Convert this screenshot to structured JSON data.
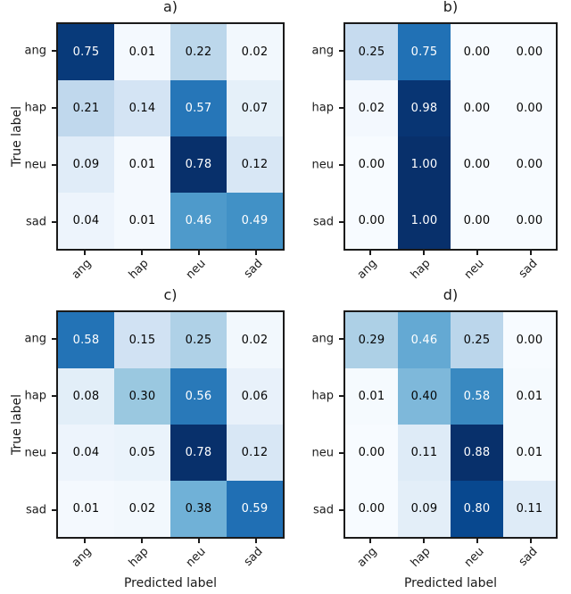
{
  "figure": {
    "background": "#ffffff",
    "axis_color": "#1a1a1a",
    "colormap": "Blues",
    "colormap_low": "#f7fbff",
    "colormap_high": "#08306b",
    "value_text_light": "#ffffff",
    "value_text_dark": "#050505",
    "row_axis_label": "True label",
    "col_axis_label": "Predicted label",
    "classes": [
      "ang",
      "hap",
      "neu",
      "sad"
    ]
  },
  "chart_data": [
    {
      "id": "a",
      "type": "heatmap",
      "title": "a)",
      "x_categories": [
        "ang",
        "hap",
        "neu",
        "sad"
      ],
      "y_categories": [
        "ang",
        "hap",
        "neu",
        "sad"
      ],
      "rows": [
        [
          0.75,
          0.01,
          0.22,
          0.02
        ],
        [
          0.21,
          0.14,
          0.57,
          0.07
        ],
        [
          0.09,
          0.01,
          0.78,
          0.12
        ],
        [
          0.04,
          0.01,
          0.46,
          0.49
        ]
      ],
      "value_format": "2dp",
      "color_scale": {
        "min": 0,
        "max": 0.78
      },
      "show_ylabel": true,
      "show_xlabel": false,
      "grid": false,
      "legend": "none"
    },
    {
      "id": "b",
      "type": "heatmap",
      "title": "b)",
      "x_categories": [
        "ang",
        "hap",
        "neu",
        "sad"
      ],
      "y_categories": [
        "ang",
        "hap",
        "neu",
        "sad"
      ],
      "rows": [
        [
          0.25,
          0.75,
          0.0,
          0.0
        ],
        [
          0.02,
          0.98,
          0.0,
          0.0
        ],
        [
          0.0,
          1.0,
          0.0,
          0.0
        ],
        [
          0.0,
          1.0,
          0.0,
          0.0
        ]
      ],
      "value_format": "2dp",
      "color_scale": {
        "min": 0,
        "max": 1.0
      },
      "show_ylabel": false,
      "show_xlabel": false,
      "grid": false,
      "legend": "none"
    },
    {
      "id": "c",
      "type": "heatmap",
      "title": "c)",
      "x_categories": [
        "ang",
        "hap",
        "neu",
        "sad"
      ],
      "y_categories": [
        "ang",
        "hap",
        "neu",
        "sad"
      ],
      "rows": [
        [
          0.58,
          0.15,
          0.25,
          0.02
        ],
        [
          0.08,
          0.3,
          0.56,
          0.06
        ],
        [
          0.04,
          0.05,
          0.78,
          0.12
        ],
        [
          0.01,
          0.02,
          0.38,
          0.59
        ]
      ],
      "value_format": "2dp",
      "color_scale": {
        "min": 0,
        "max": 0.78
      },
      "show_ylabel": true,
      "show_xlabel": true,
      "grid": false,
      "legend": "none"
    },
    {
      "id": "d",
      "type": "heatmap",
      "title": "d)",
      "x_categories": [
        "ang",
        "hap",
        "neu",
        "sad"
      ],
      "y_categories": [
        "ang",
        "hap",
        "neu",
        "sad"
      ],
      "rows": [
        [
          0.29,
          0.46,
          0.25,
          0.0
        ],
        [
          0.01,
          0.4,
          0.58,
          0.01
        ],
        [
          0.0,
          0.11,
          0.88,
          0.01
        ],
        [
          0.0,
          0.09,
          0.8,
          0.11
        ]
      ],
      "value_format": "2dp",
      "color_scale": {
        "min": 0,
        "max": 0.88
      },
      "show_ylabel": false,
      "show_xlabel": true,
      "grid": false,
      "legend": "none"
    }
  ]
}
